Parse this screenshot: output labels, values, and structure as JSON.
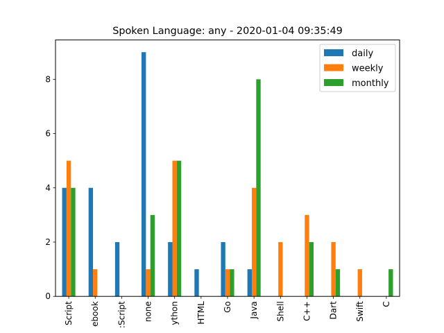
{
  "chart_data": {
    "type": "bar",
    "title": "Spoken Language: any - 2020-01-04 09:35:49",
    "xlabel": "",
    "ylabel": "",
    "categories": [
      "Script",
      "ebook",
      ":Script",
      "none",
      "ython",
      "HTML",
      "Go",
      "Java",
      "Shell",
      "C++",
      "Dart",
      "Swift",
      "C"
    ],
    "series": [
      {
        "name": "daily",
        "color": "#1f77b4",
        "values": [
          4,
          4,
          2,
          9,
          2,
          1,
          2,
          1,
          0,
          0,
          0,
          0,
          0
        ]
      },
      {
        "name": "weekly",
        "color": "#ff7f0e",
        "values": [
          5,
          1,
          0,
          1,
          5,
          0,
          1,
          4,
          2,
          3,
          2,
          1,
          0
        ]
      },
      {
        "name": "monthly",
        "color": "#2ca02c",
        "values": [
          4,
          0,
          0,
          3,
          5,
          0,
          1,
          8,
          0,
          2,
          1,
          0,
          1
        ]
      }
    ],
    "ylim": [
      0,
      9.45
    ],
    "yticks": [
      0,
      2,
      4,
      6,
      8
    ],
    "legend": "top-right",
    "grid": false
  }
}
